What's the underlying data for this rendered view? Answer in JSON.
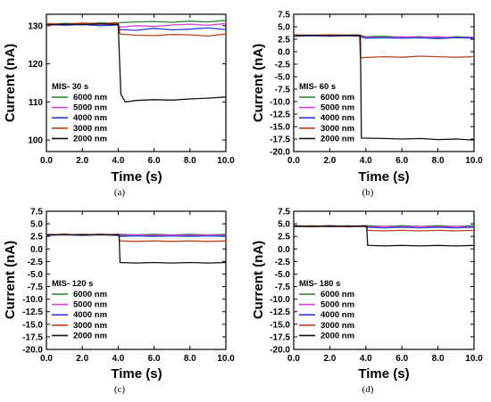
{
  "colors": {
    "6000 nm": "#2e7d32",
    "5000 nm": "#d43fd4",
    "4000 nm": "#2a3fcf",
    "3000 nm": "#b5431f",
    "2000 nm": "#111111"
  },
  "chart_data": [
    {
      "type": "line",
      "panel_label": "(a)",
      "legend_title": "MIS- 30 s",
      "xlabel": "Time (s)",
      "ylabel": "Current (nA)",
      "xlim": [
        0,
        10
      ],
      "ylim": [
        97,
        133
      ],
      "xticks": [
        "0.0",
        "2.0",
        "4.0",
        "6.0",
        "8.0",
        "10.0"
      ],
      "yticks": [
        "100",
        "110",
        "120",
        "130"
      ],
      "ytick_values": [
        100,
        110,
        120,
        130
      ],
      "series": [
        {
          "name": "6000 nm",
          "x": [
            0,
            1,
            2,
            3,
            4,
            4.1,
            5,
            6,
            7,
            8,
            9,
            10
          ],
          "y": [
            130.3,
            130.6,
            130.5,
            130.7,
            130.6,
            130.8,
            131.0,
            131.1,
            130.9,
            131.2,
            131.0,
            131.4
          ]
        },
        {
          "name": "5000 nm",
          "x": [
            0,
            1,
            2,
            3,
            4,
            4.1,
            5,
            6,
            7,
            8,
            9,
            10
          ],
          "y": [
            130.1,
            130.3,
            130.2,
            130.4,
            130.3,
            129.6,
            130.0,
            129.8,
            130.2,
            130.4,
            130.1,
            130.6
          ]
        },
        {
          "name": "4000 nm",
          "x": [
            0,
            1,
            2,
            3,
            4,
            4.1,
            5,
            6,
            7,
            8,
            9,
            10
          ],
          "y": [
            130.4,
            130.1,
            130.3,
            130.0,
            130.2,
            129.0,
            128.8,
            129.3,
            128.9,
            129.1,
            129.4,
            129.0
          ]
        },
        {
          "name": "3000 nm",
          "x": [
            0,
            1,
            2,
            3,
            4,
            4.1,
            5,
            6,
            7,
            8,
            9,
            10
          ],
          "y": [
            130.6,
            130.4,
            130.7,
            130.5,
            130.8,
            127.8,
            127.5,
            127.4,
            127.7,
            127.6,
            127.3,
            127.8
          ]
        },
        {
          "name": "2000 nm",
          "x": [
            0,
            1,
            2,
            3,
            4,
            4.15,
            4.4,
            5,
            6,
            7,
            8,
            9,
            10
          ],
          "y": [
            130.2,
            130.4,
            130.3,
            130.5,
            130.3,
            112,
            110,
            110.4,
            110.6,
            110.5,
            110.8,
            111.0,
            111.3
          ]
        }
      ]
    },
    {
      "type": "line",
      "panel_label": "(b)",
      "legend_title": "MIS- 60 s",
      "xlabel": "Time (s)",
      "ylabel": "Current (nA)",
      "xlim": [
        0,
        10
      ],
      "ylim": [
        -20,
        7.5
      ],
      "xticks": [
        "0.0",
        "2.0",
        "4.0",
        "6.0",
        "8.0",
        "10.0"
      ],
      "yticks": [
        "-20.0",
        "-17.5",
        "-15.0",
        "-12.5",
        "-10.0",
        "-7.5",
        "-5.0",
        "-2.5",
        "0.0",
        "2.5",
        "5.0",
        "7.5"
      ],
      "ytick_values": [
        -20,
        -17.5,
        -15,
        -12.5,
        -10,
        -7.5,
        -5,
        -2.5,
        0,
        2.5,
        5,
        7.5
      ],
      "series": [
        {
          "name": "6000 nm",
          "x": [
            0,
            1,
            2,
            3,
            3.6,
            4,
            5,
            6,
            7,
            8,
            9,
            10
          ],
          "y": [
            3.3,
            3.2,
            3.4,
            3.3,
            3.4,
            3.0,
            3.1,
            2.9,
            3.0,
            2.8,
            3.0,
            2.9
          ]
        },
        {
          "name": "5000 nm",
          "x": [
            0,
            1,
            2,
            3,
            3.6,
            4,
            5,
            6,
            7,
            8,
            9,
            10
          ],
          "y": [
            3.2,
            3.3,
            3.2,
            3.3,
            3.2,
            2.9,
            2.8,
            3.0,
            2.9,
            3.0,
            2.8,
            2.9
          ]
        },
        {
          "name": "4000 nm",
          "x": [
            0,
            1,
            2,
            3,
            3.6,
            4,
            5,
            6,
            7,
            8,
            9,
            10
          ],
          "y": [
            3.1,
            3.2,
            3.1,
            3.2,
            3.1,
            2.7,
            2.8,
            2.7,
            2.8,
            2.6,
            2.8,
            2.7
          ]
        },
        {
          "name": "3000 nm",
          "x": [
            0,
            1,
            2,
            3,
            3.65,
            3.7,
            5,
            6,
            7,
            8,
            9,
            10
          ],
          "y": [
            3.4,
            3.3,
            3.4,
            3.3,
            3.4,
            -1.2,
            -1.0,
            -1.1,
            -0.9,
            -1.0,
            -1.1,
            -1.0
          ]
        },
        {
          "name": "2000 nm",
          "x": [
            0,
            1,
            2,
            3,
            3.7,
            3.75,
            5,
            6,
            7,
            8,
            9,
            10
          ],
          "y": [
            3.2,
            3.3,
            3.2,
            3.3,
            3.2,
            -17.3,
            -17.4,
            -17.5,
            -17.4,
            -17.6,
            -17.5,
            -17.7
          ]
        }
      ]
    },
    {
      "type": "line",
      "panel_label": "(c)",
      "legend_title": "MIS- 120 s",
      "xlabel": "Time (s)",
      "ylabel": "Current (nA)",
      "xlim": [
        0,
        10
      ],
      "ylim": [
        -20,
        7.5
      ],
      "xticks": [
        "0.0",
        "2.0",
        "4.0",
        "6.0",
        "8.0",
        "10.0"
      ],
      "yticks": [
        "-20.0",
        "-17.5",
        "-15.0",
        "-12.5",
        "-10.0",
        "-7.5",
        "-5.0",
        "-2.5",
        "0.0",
        "2.5",
        "5.0",
        "7.5"
      ],
      "ytick_values": [
        -20,
        -17.5,
        -15,
        -12.5,
        -10,
        -7.5,
        -5,
        -2.5,
        0,
        2.5,
        5,
        7.5
      ],
      "series": [
        {
          "name": "6000 nm",
          "x": [
            0,
            1,
            2,
            3,
            4,
            4.1,
            5,
            6,
            7,
            8,
            9,
            10
          ],
          "y": [
            2.8,
            2.9,
            2.8,
            2.9,
            2.8,
            2.9,
            2.8,
            2.9,
            2.8,
            2.9,
            2.8,
            2.9
          ]
        },
        {
          "name": "5000 nm",
          "x": [
            0,
            1,
            2,
            3,
            4,
            4.1,
            5,
            6,
            7,
            8,
            9,
            10
          ],
          "y": [
            2.9,
            2.8,
            2.9,
            2.8,
            2.9,
            2.7,
            2.8,
            2.7,
            2.8,
            2.7,
            2.8,
            2.7
          ]
        },
        {
          "name": "4000 nm",
          "x": [
            0,
            1,
            2,
            3,
            4,
            4.1,
            5,
            6,
            7,
            8,
            9,
            10
          ],
          "y": [
            2.7,
            2.8,
            2.7,
            2.8,
            2.7,
            2.5,
            2.6,
            2.5,
            2.6,
            2.5,
            2.6,
            2.5
          ]
        },
        {
          "name": "3000 nm",
          "x": [
            0,
            1,
            2,
            3,
            4,
            4.1,
            5,
            6,
            7,
            8,
            9,
            10
          ],
          "y": [
            2.9,
            2.8,
            2.9,
            2.8,
            2.9,
            1.6,
            1.5,
            1.6,
            1.5,
            1.6,
            1.5,
            1.6
          ]
        },
        {
          "name": "2000 nm",
          "x": [
            0,
            1,
            2,
            3,
            4.05,
            4.1,
            5,
            6,
            7,
            8,
            9,
            10
          ],
          "y": [
            2.8,
            2.9,
            2.8,
            2.9,
            2.8,
            -2.7,
            -2.8,
            -2.7,
            -2.8,
            -2.7,
            -2.8,
            -2.7
          ]
        }
      ]
    },
    {
      "type": "line",
      "panel_label": "(d)",
      "legend_title": "MIS- 180 s",
      "xlabel": "Time (s)",
      "ylabel": "Current (nA)",
      "xlim": [
        0,
        10
      ],
      "ylim": [
        -20,
        7.5
      ],
      "xticks": [
        "0.0",
        "2.0",
        "4.0",
        "6.0",
        "8.0",
        "10.0"
      ],
      "yticks": [
        "-20.0",
        "-17.5",
        "-15.0",
        "-12.5",
        "-10.0",
        "-7.5",
        "-5.0",
        "-2.5",
        "0.0",
        "2.5",
        "5.0",
        "7.5"
      ],
      "ytick_values": [
        -20,
        -17.5,
        -15,
        -12.5,
        -10,
        -7.5,
        -5,
        -2.5,
        0,
        2.5,
        5,
        7.5
      ],
      "series": [
        {
          "name": "6000 nm",
          "x": [
            0,
            1,
            2,
            3,
            4,
            4.1,
            5,
            6,
            7,
            8,
            9,
            10
          ],
          "y": [
            4.5,
            4.6,
            4.5,
            4.6,
            4.5,
            4.6,
            4.5,
            4.6,
            4.5,
            4.6,
            4.5,
            4.6
          ]
        },
        {
          "name": "5000 nm",
          "x": [
            0,
            1,
            2,
            3,
            4,
            4.1,
            5,
            6,
            7,
            8,
            9,
            10
          ],
          "y": [
            4.6,
            4.5,
            4.6,
            4.5,
            4.6,
            4.4,
            4.5,
            4.4,
            4.5,
            4.4,
            4.5,
            4.4
          ]
        },
        {
          "name": "4000 nm",
          "x": [
            0,
            1,
            2,
            3,
            4,
            4.1,
            5,
            6,
            7,
            8,
            9,
            10
          ],
          "y": [
            4.4,
            4.5,
            4.4,
            4.5,
            4.4,
            4.3,
            4.2,
            4.3,
            4.2,
            4.3,
            4.2,
            4.3
          ]
        },
        {
          "name": "3000 nm",
          "x": [
            0,
            1,
            2,
            3,
            4,
            4.1,
            5,
            6,
            7,
            8,
            9,
            10
          ],
          "y": [
            4.5,
            4.4,
            4.5,
            4.4,
            4.5,
            3.7,
            3.6,
            3.7,
            3.6,
            3.7,
            3.6,
            3.7
          ]
        },
        {
          "name": "2000 nm",
          "x": [
            0,
            1,
            2,
            3,
            4.05,
            4.1,
            5,
            6,
            7,
            8,
            9,
            10
          ],
          "y": [
            4.6,
            4.5,
            4.6,
            4.5,
            4.6,
            0.7,
            0.6,
            0.7,
            0.6,
            0.7,
            0.6,
            0.7
          ]
        }
      ]
    }
  ]
}
